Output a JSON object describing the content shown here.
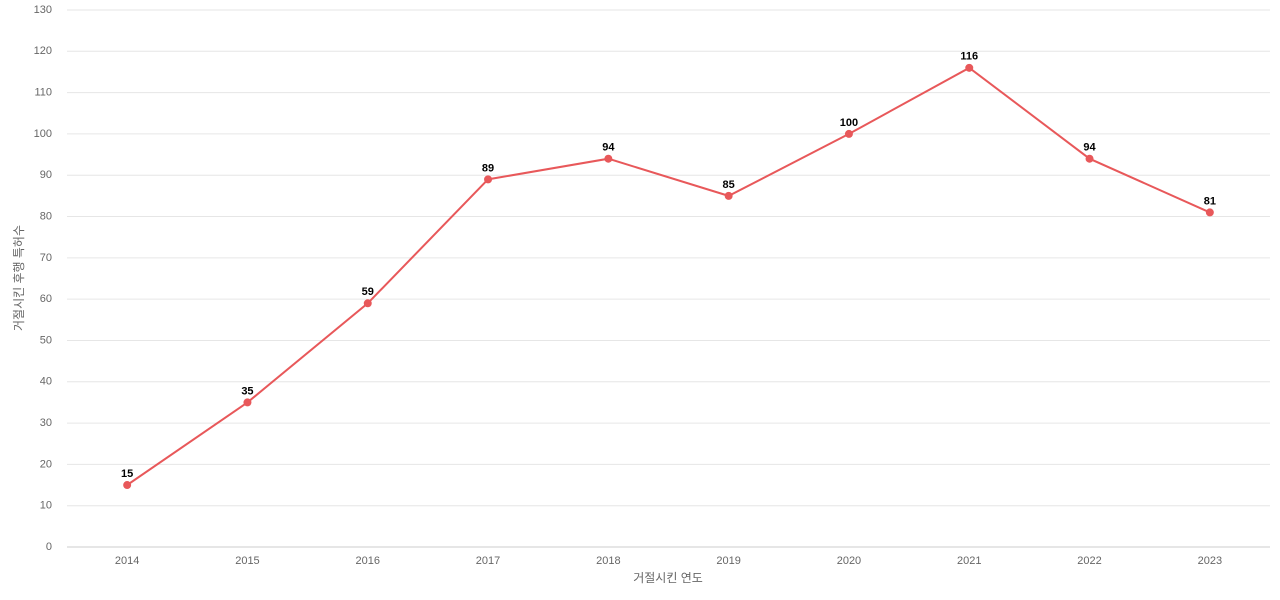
{
  "chart_data": {
    "type": "line",
    "x_label": "거절시킨 연도",
    "y_label": "거절시킨 후행 특허수",
    "categories": [
      "2014",
      "2015",
      "2016",
      "2017",
      "2018",
      "2019",
      "2020",
      "2021",
      "2022",
      "2023"
    ],
    "values": [
      15,
      35,
      59,
      89,
      94,
      85,
      100,
      116,
      94,
      81
    ],
    "color": "#e8585a",
    "ylim": [
      0,
      130
    ],
    "yticks": [
      0,
      10,
      20,
      30,
      40,
      50,
      60,
      70,
      80,
      90,
      100,
      110,
      120,
      130
    ],
    "grid": true
  }
}
